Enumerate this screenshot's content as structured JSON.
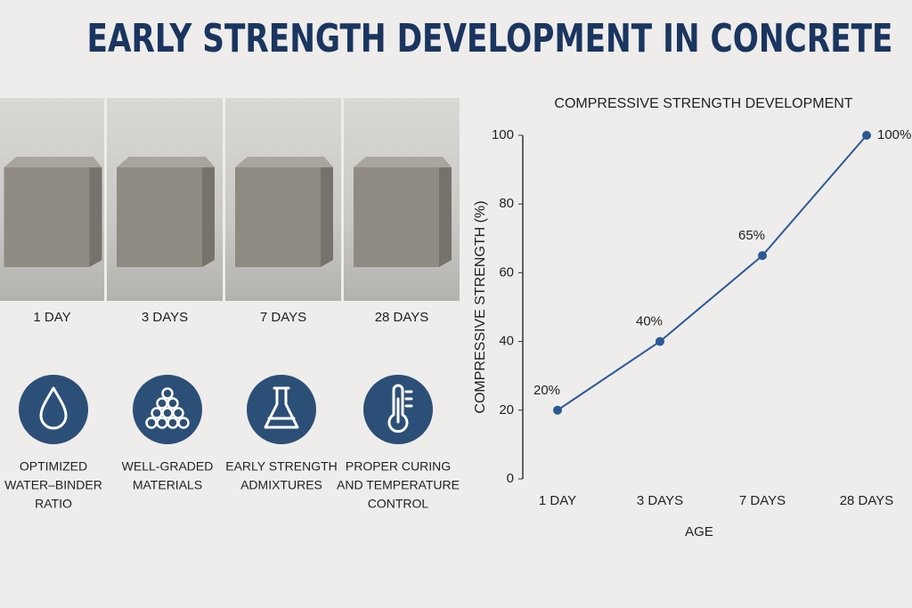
{
  "title": "EARLY STRENGTH DEVELOPMENT IN CONCRETE",
  "samples": [
    "1 DAY",
    "3 DAYS",
    "7 DAYS",
    "28 DAYS"
  ],
  "factors": [
    [
      "OPTIMIZED",
      "WATER–BINDER",
      "RATIO"
    ],
    [
      "WELL-GRADED",
      "MATERIALS"
    ],
    [
      "EARLY STRENGTH",
      "ADMIXTURES"
    ],
    [
      "PROPER CURING",
      "AND TEMPERATURE",
      "CONTROL"
    ]
  ],
  "chart_data": {
    "type": "line",
    "title": "COMPRESSIVE STRENGTH DEVELOPMENT",
    "x_label": "AGE",
    "y_label": "COMPRESSIVE STRENGTH (%)",
    "categories": [
      "1 DAY",
      "3 DAYS",
      "7 DAYS",
      "28 DAYS"
    ],
    "values": [
      20,
      40,
      65,
      100
    ],
    "value_labels": [
      "20%",
      "40%",
      "65%",
      "100%"
    ],
    "color": "#2a5a96",
    "ylim": [
      0,
      100
    ],
    "yticks": [
      0,
      20,
      40,
      60,
      80,
      100
    ]
  }
}
